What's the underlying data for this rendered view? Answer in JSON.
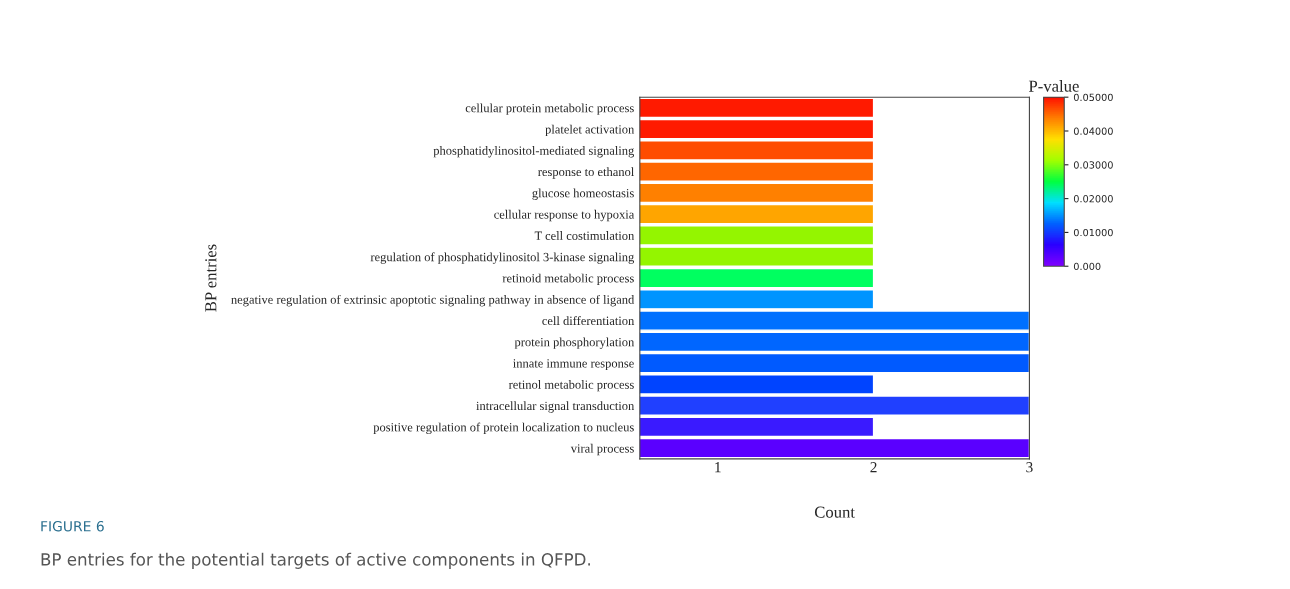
{
  "chart_data": {
    "type": "bar",
    "orientation": "horizontal",
    "xlabel": "Count",
    "ylabel": "BP entries",
    "clabel": "P-value",
    "categories": [
      "cellular protein metabolic process",
      "platelet activation",
      "phosphatidylinositol-mediated signaling",
      "response to ethanol",
      "glucose homeostasis",
      "cellular response to hypoxia",
      "T cell costimulation",
      "regulation of phosphatidylinositol 3-kinase signaling",
      "retinoid metabolic process",
      "negative regulation of extrinsic apoptotic signaling pathway in absence of ligand",
      "cell differentiation",
      "protein phosphorylation",
      "innate immune response",
      "retinol metabolic process",
      "intracellular signal transduction",
      "positive regulation of protein localization to nucleus",
      "viral process"
    ],
    "values": [
      2,
      2,
      2,
      2,
      2,
      2,
      2,
      2,
      2,
      2,
      3,
      3,
      3,
      2,
      3,
      2,
      3
    ],
    "colors": [
      "#ff1a00",
      "#ff1a00",
      "#ff4c00",
      "#ff6600",
      "#ff8000",
      "#ffa500",
      "#94f500",
      "#94f500",
      "#00ff60",
      "#0094ff",
      "#0070ff",
      "#0066ff",
      "#005aff",
      "#0044ff",
      "#2040ff",
      "#3a1aff",
      "#5a00ff"
    ],
    "xlim": [
      0.5,
      3
    ],
    "xticks": [
      1,
      2,
      3
    ],
    "clim": [
      0,
      0.05
    ],
    "cticks": [
      {
        "value": 0,
        "label": "0.000"
      },
      {
        "value": 0.01,
        "label": "0.01000"
      },
      {
        "value": 0.02,
        "label": "0.02000"
      },
      {
        "value": 0.03,
        "label": "0.03000"
      },
      {
        "value": 0.04,
        "label": "0.04000"
      },
      {
        "value": 0.05,
        "label": "0.05000"
      }
    ],
    "grid": false,
    "legend": false,
    "annotations": [
      "FIGURE 6",
      "BP entries for the potential targets of active components in QFPD."
    ]
  }
}
